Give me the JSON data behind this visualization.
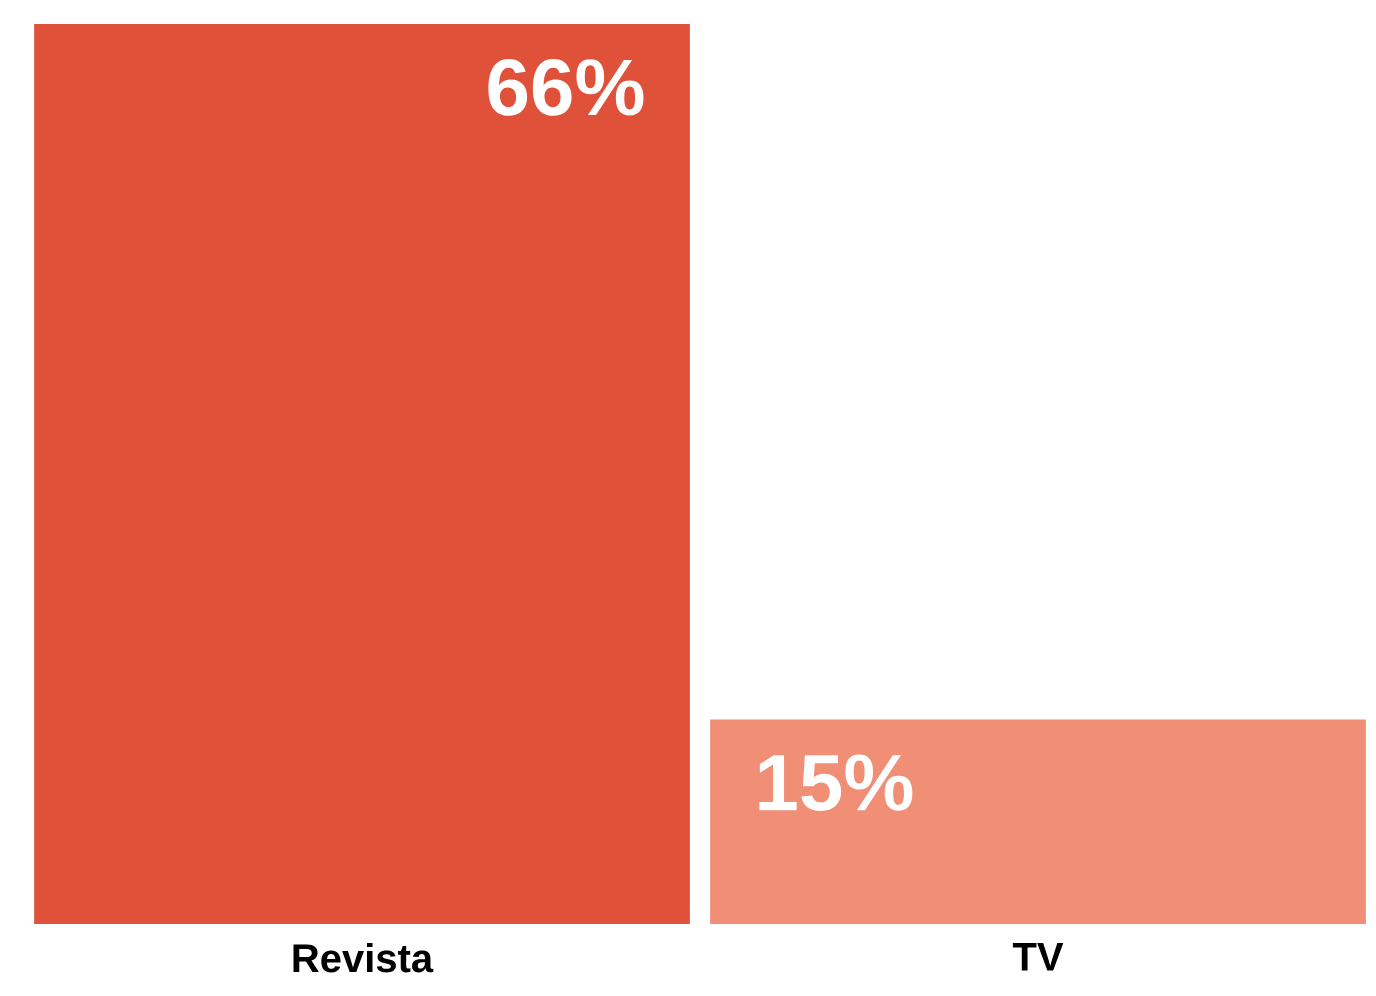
{
  "chart_data": {
    "type": "bar",
    "categories": [
      "Revista",
      "TV"
    ],
    "values": [
      66,
      15
    ],
    "value_labels": [
      "66%",
      "15%"
    ],
    "colors": [
      "#e0513a",
      "#f08e76"
    ]
  }
}
